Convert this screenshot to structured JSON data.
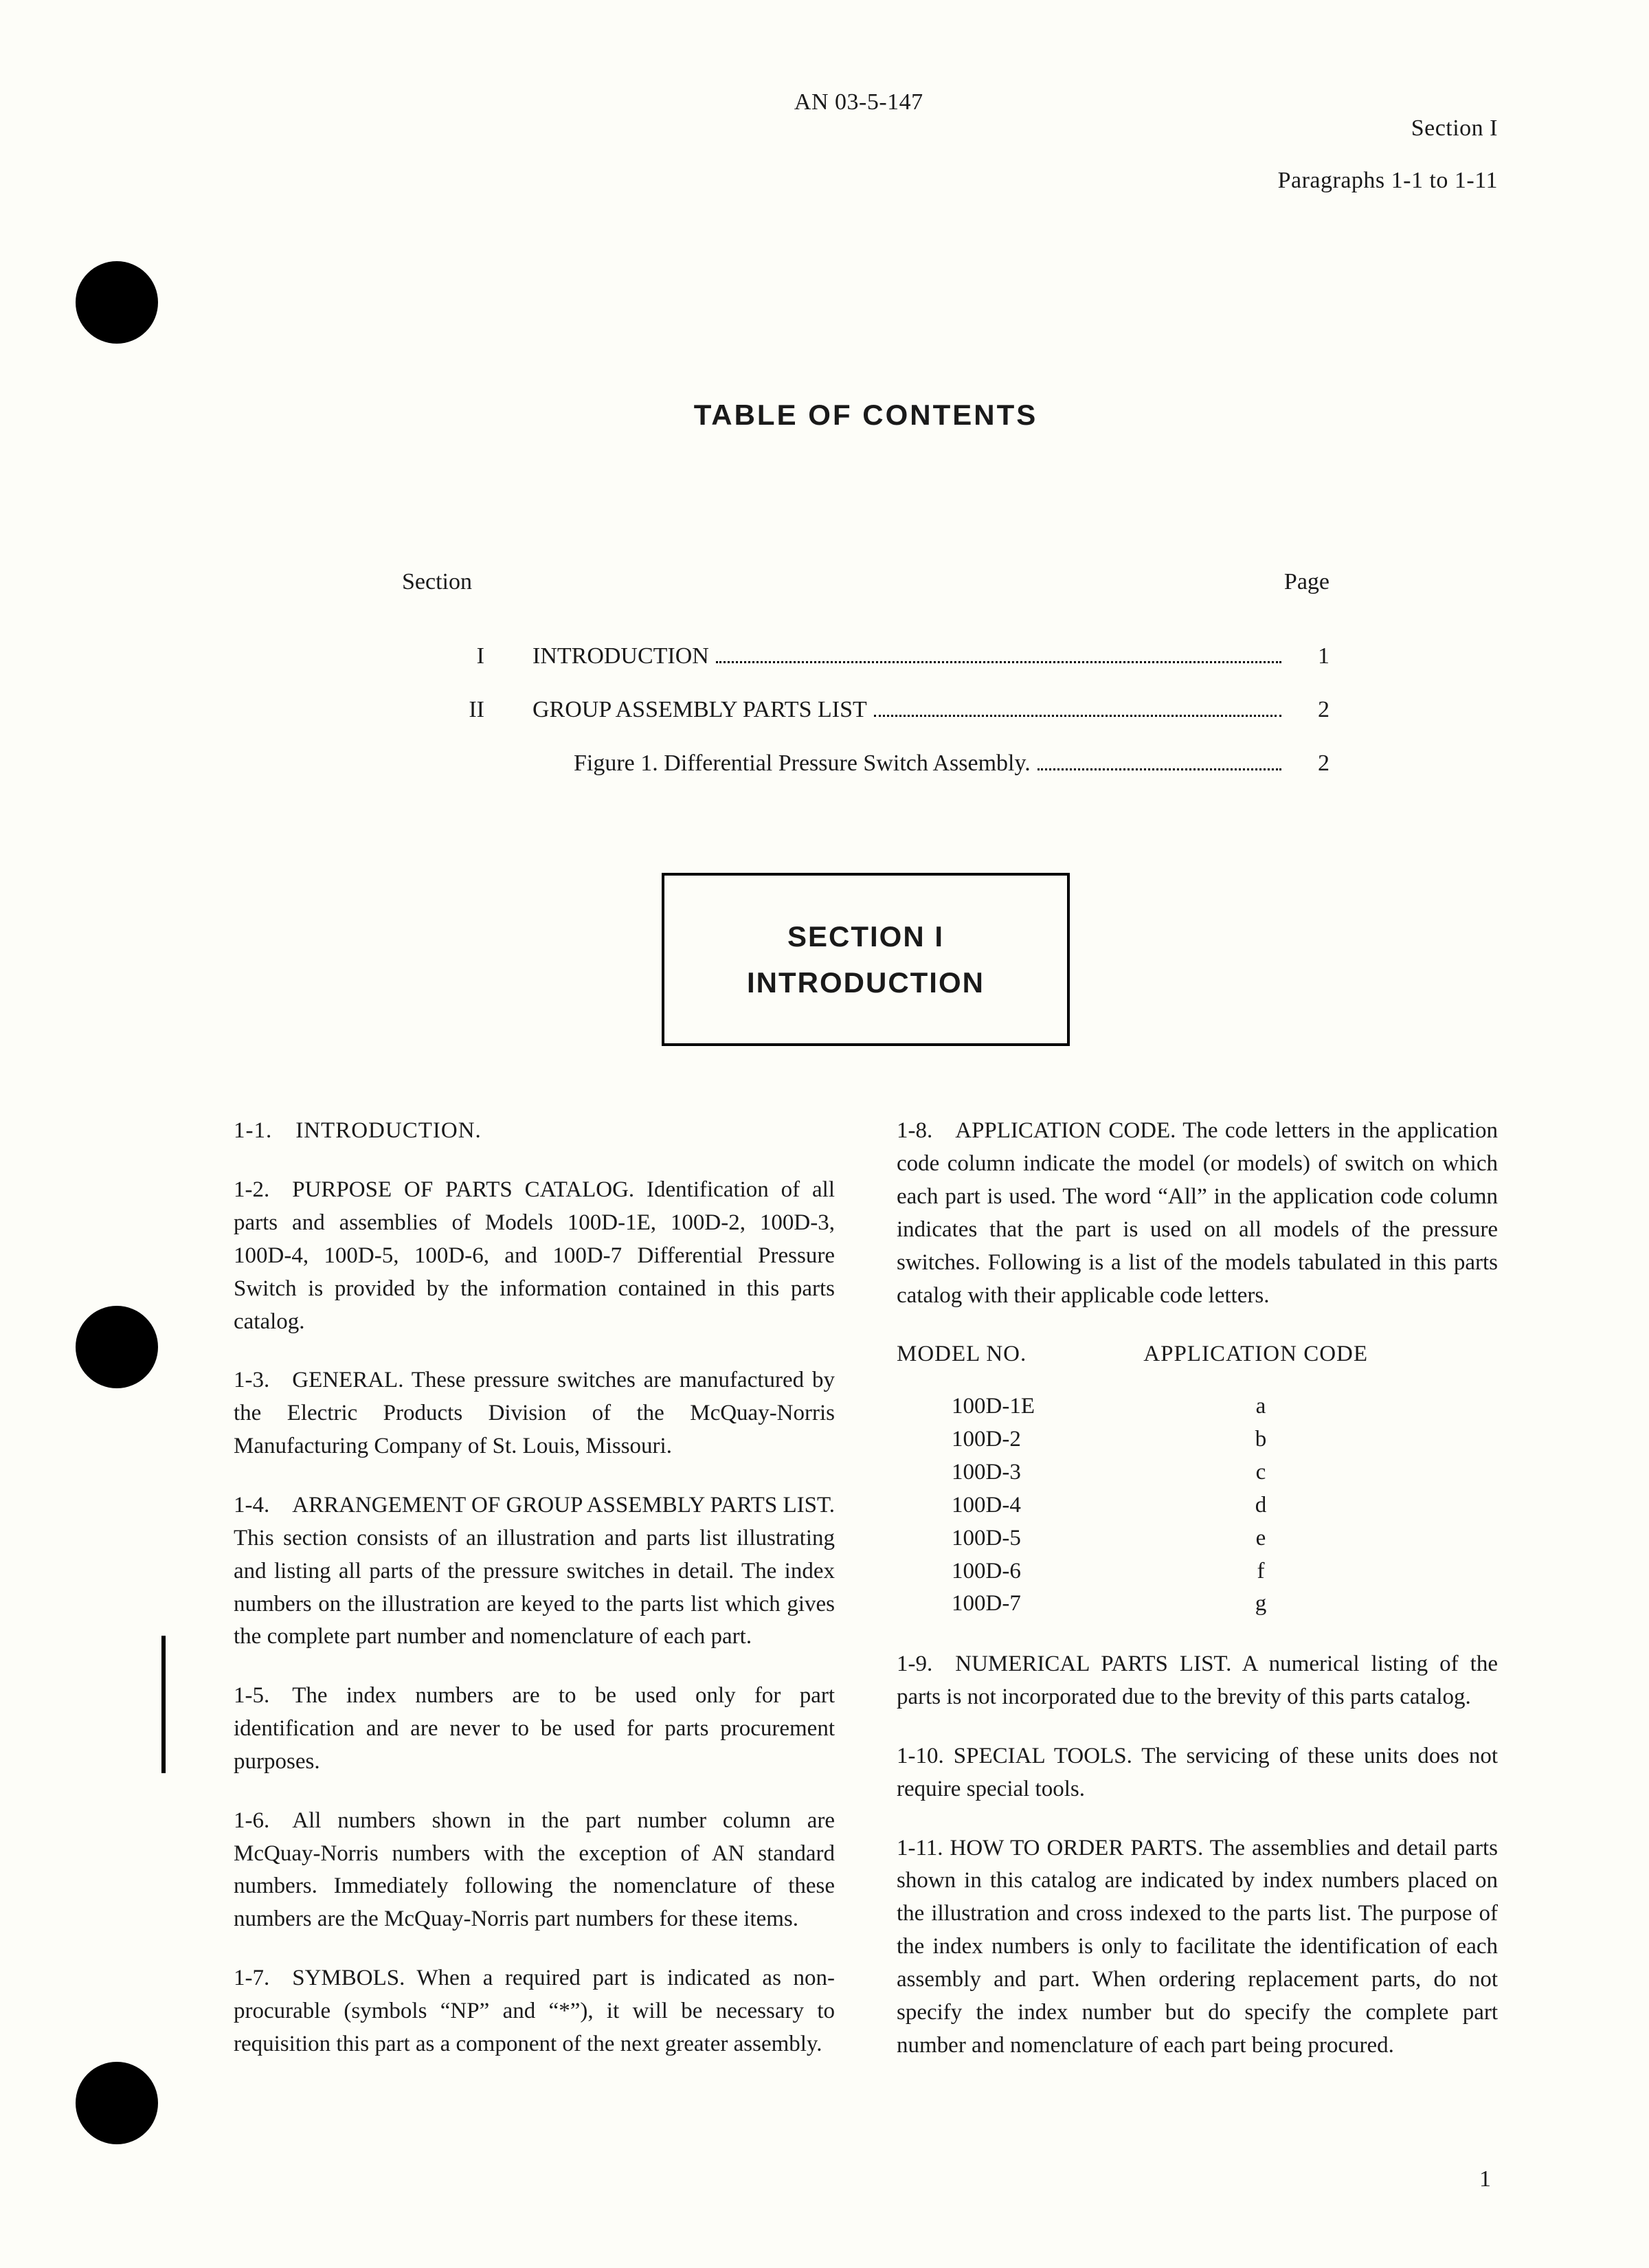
{
  "header": {
    "center": "AN 03-5-147",
    "right_line1": "Section I",
    "right_line2": "Paragraphs 1-1 to 1-11"
  },
  "toc": {
    "title": "TABLE OF CONTENTS",
    "head_left": "Section",
    "head_right": "Page",
    "rows": [
      {
        "sec": "I",
        "label": "INTRODUCTION",
        "page": "1"
      },
      {
        "sec": "II",
        "label": "GROUP ASSEMBLY PARTS LIST",
        "page": "2"
      }
    ],
    "subrow": {
      "label": "Figure 1. Differential Pressure Switch Assembly.",
      "page": "2"
    }
  },
  "section_box": {
    "line1": "SECTION I",
    "line2": "INTRODUCTION"
  },
  "left_col": {
    "p1": "1-1. INTRODUCTION.",
    "p2": "1-2. PURPOSE OF PARTS CATALOG. Identification of all parts and assemblies of Models 100D-1E, 100D-2, 100D-3, 100D-4, 100D-5, 100D-6, and 100D-7 Differential Pressure Switch is provided by the information contained in this parts catalog.",
    "p3": "1-3. GENERAL. These pressure switches are manufactured by the Electric Products Division of the McQuay-Norris Manufacturing Company of St. Louis, Missouri.",
    "p4": "1-4. ARRANGEMENT OF GROUP ASSEMBLY PARTS LIST. This section consists of an illustration and parts list illustrating and listing all parts of the pressure switches in detail. The index numbers on the illustration are keyed to the parts list which gives the complete part number and nomenclature of each part.",
    "p5": "1-5. The index numbers are to be used only for part identification and are never to be used for parts procurement purposes.",
    "p6": "1-6. All numbers shown in the part number column are McQuay-Norris numbers with the exception of AN standard numbers. Immediately following the nomenclature of these numbers are the McQuay-Norris part numbers for these items.",
    "p7": "1-7. SYMBOLS. When a required part is indicated as non-procurable (symbols “NP” and “*”), it will be necessary to requisition this part as a component of the next greater assembly."
  },
  "right_col": {
    "p8": "1-8. APPLICATION CODE. The code letters in the application code column indicate the model (or models) of switch on which each part is used. The word “All” in the application code column indicates that the part is used on all models of the pressure switches. Following is a list of the models tabulated in this parts catalog with their applicable code letters.",
    "table_head_model": "MODEL NO.",
    "table_head_code": "APPLICATION CODE",
    "models": [
      {
        "m": "100D-1E",
        "c": "a"
      },
      {
        "m": "100D-2",
        "c": "b"
      },
      {
        "m": "100D-3",
        "c": "c"
      },
      {
        "m": "100D-4",
        "c": "d"
      },
      {
        "m": "100D-5",
        "c": "e"
      },
      {
        "m": "100D-6",
        "c": "f"
      },
      {
        "m": "100D-7",
        "c": "g"
      }
    ],
    "p9": "1-9. NUMERICAL PARTS LIST. A numerical listing of the parts is not incorporated due to the brevity of this parts catalog.",
    "p10": "1-10. SPECIAL TOOLS. The servicing of these units does not require special tools.",
    "p11": "1-11. HOW TO ORDER PARTS. The assemblies and detail parts shown in this catalog are indicated by index numbers placed on the illustration and cross indexed to the parts list. The purpose of the index numbers is only to facilitate the identification of each assembly and part. When ordering replacement parts, do not specify the index number but do specify the complete part number and nomenclature of each part being procured."
  },
  "page_number": "1"
}
